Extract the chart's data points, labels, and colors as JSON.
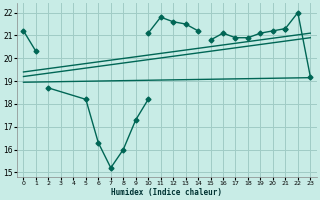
{
  "xlabel": "Humidex (Indice chaleur)",
  "background_color": "#c8ece6",
  "grid_color": "#a0ccc6",
  "line_color": "#006655",
  "xlim": [
    -0.5,
    23.5
  ],
  "ylim": [
    14.8,
    22.4
  ],
  "yticks": [
    15,
    16,
    17,
    18,
    19,
    20,
    21,
    22
  ],
  "xticks": [
    0,
    1,
    2,
    3,
    4,
    5,
    6,
    7,
    8,
    9,
    10,
    11,
    12,
    13,
    14,
    15,
    16,
    17,
    18,
    19,
    20,
    21,
    22,
    23
  ],
  "series_segments": [
    {
      "x": [
        0,
        1
      ],
      "y": [
        21.2,
        20.3
      ]
    },
    {
      "x": [
        21,
        22,
        23
      ],
      "y": [
        21.3,
        22.0,
        19.2
      ]
    },
    {
      "x": [
        2,
        5,
        6,
        7,
        8,
        9,
        10
      ],
      "y": [
        18.7,
        18.2,
        16.3,
        15.2,
        16.0,
        17.3,
        18.2
      ]
    },
    {
      "x": [
        10,
        11,
        12,
        13,
        14
      ],
      "y": [
        21.1,
        21.8,
        21.6,
        21.5,
        21.2
      ]
    },
    {
      "x": [
        15,
        16,
        17,
        18,
        19,
        20,
        21
      ],
      "y": [
        20.8,
        21.1,
        20.9,
        20.9,
        21.1,
        21.2,
        21.3
      ]
    }
  ],
  "trend_lines": [
    {
      "x": [
        0,
        23
      ],
      "y": [
        18.95,
        19.15
      ]
    },
    {
      "x": [
        0,
        23
      ],
      "y": [
        19.2,
        20.9
      ]
    },
    {
      "x": [
        0,
        23
      ],
      "y": [
        19.4,
        21.1
      ]
    }
  ]
}
